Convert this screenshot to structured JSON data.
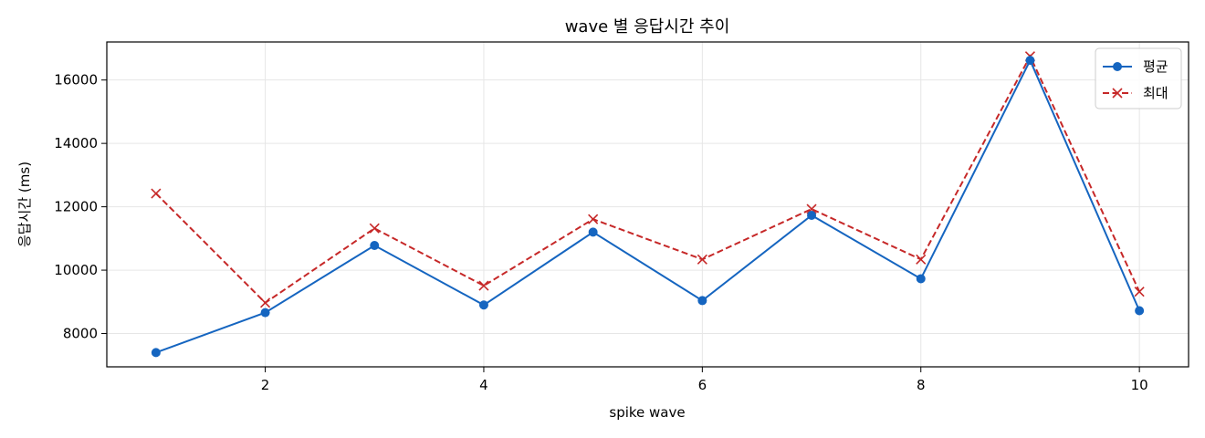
{
  "chart_data": {
    "type": "line",
    "title": "wave 별 응답시간 추이",
    "xlabel": "spike wave",
    "ylabel": "응답시간 (ms)",
    "x": [
      1,
      2,
      3,
      4,
      5,
      6,
      7,
      8,
      9,
      10
    ],
    "xlim": [
      0.55,
      10.45
    ],
    "ylim": [
      6950,
      17200
    ],
    "xticks": [
      2,
      4,
      6,
      8,
      10
    ],
    "yticks": [
      8000,
      10000,
      12000,
      14000,
      16000
    ],
    "grid": true,
    "legend_position": "top-right",
    "series": [
      {
        "name": "평균",
        "color": "#1565c0",
        "line_style": "solid",
        "marker": "circle",
        "values": [
          7400,
          8660,
          10780,
          8900,
          11200,
          9040,
          11730,
          9730,
          16620,
          8720
        ]
      },
      {
        "name": "최대",
        "color": "#c62828",
        "line_style": "dashed",
        "marker": "x",
        "values": [
          12420,
          8970,
          11320,
          9510,
          11610,
          10340,
          11930,
          10340,
          16750,
          9320
        ]
      }
    ]
  }
}
